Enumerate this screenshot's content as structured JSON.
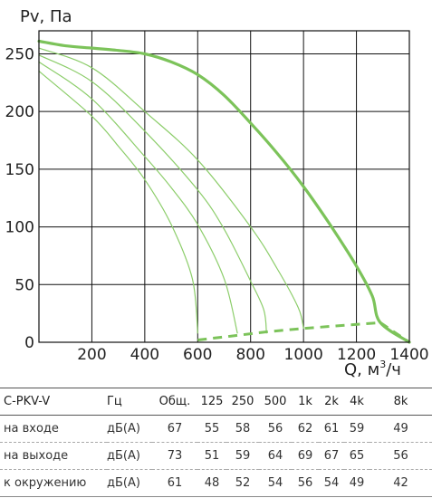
{
  "chart_data": {
    "type": "line",
    "ylabel": "Pv, Па",
    "xlabel_main": "Q, м",
    "xlabel_sup": "3",
    "xlabel_tail": "/ч",
    "xlim": [
      0,
      1400
    ],
    "ylim": [
      0,
      270
    ],
    "x_ticks": [
      200,
      400,
      600,
      800,
      1000,
      1200,
      1400
    ],
    "y_ticks": [
      0,
      50,
      100,
      150,
      200,
      250
    ],
    "grid": true,
    "colors": {
      "main": "#7cc35a",
      "thin": "#8ccd6a"
    },
    "series": [
      {
        "points": [
          [
            0,
            261
          ],
          [
            100,
            257
          ],
          [
            200,
            255
          ],
          [
            300,
            253
          ],
          [
            400,
            250
          ],
          [
            500,
            243
          ],
          [
            600,
            232
          ],
          [
            700,
            214
          ],
          [
            800,
            190
          ],
          [
            900,
            164
          ],
          [
            1000,
            135
          ],
          [
            1100,
            102
          ],
          [
            1200,
            66
          ],
          [
            1260,
            40
          ],
          [
            1290,
            17
          ],
          [
            1400,
            0
          ]
        ]
      },
      {
        "points": [
          [
            0,
            255
          ],
          [
            200,
            238
          ],
          [
            400,
            200
          ],
          [
            600,
            158
          ],
          [
            800,
            100
          ],
          [
            900,
            64
          ],
          [
            980,
            30
          ],
          [
            1000,
            12
          ]
        ]
      },
      {
        "points": [
          [
            0,
            249
          ],
          [
            200,
            226
          ],
          [
            400,
            183
          ],
          [
            600,
            132
          ],
          [
            700,
            98
          ],
          [
            800,
            53
          ],
          [
            850,
            28
          ],
          [
            860,
            8
          ]
        ]
      },
      {
        "points": [
          [
            0,
            243
          ],
          [
            200,
            211
          ],
          [
            400,
            161
          ],
          [
            500,
            134
          ],
          [
            600,
            102
          ],
          [
            700,
            55
          ],
          [
            750,
            8
          ]
        ]
      },
      {
        "points": [
          [
            0,
            235
          ],
          [
            200,
            196
          ],
          [
            300,
            170
          ],
          [
            400,
            141
          ],
          [
            500,
            102
          ],
          [
            580,
            55
          ],
          [
            600,
            8
          ]
        ]
      }
    ],
    "operating_line": [
      [
        600,
        2
      ],
      [
        750,
        6
      ],
      [
        860,
        9
      ],
      [
        1000,
        12
      ],
      [
        1290,
        17
      ]
    ],
    "end_dash": [
      [
        1290,
        17
      ],
      [
        1400,
        0
      ]
    ]
  },
  "table": {
    "headers": [
      "C-PKV-V",
      "Гц",
      "Общ.",
      "125",
      "250",
      "500",
      "1k",
      "2k",
      "4k",
      "8k"
    ],
    "rows": [
      [
        "на входе",
        "дБ(А)",
        "67",
        "55",
        "58",
        "56",
        "62",
        "61",
        "59",
        "49"
      ],
      [
        "на выходе",
        "дБ(А)",
        "73",
        "51",
        "59",
        "64",
        "69",
        "67",
        "65",
        "56"
      ],
      [
        "к окружению",
        "дБ(А)",
        "61",
        "48",
        "52",
        "54",
        "56",
        "54",
        "49",
        "42"
      ]
    ]
  }
}
